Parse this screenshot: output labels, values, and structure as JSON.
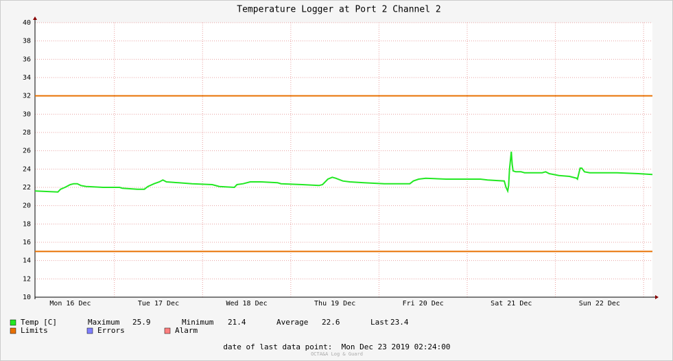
{
  "chart_data": {
    "type": "line",
    "title": "Temperature Logger at Port 2 Channel 2",
    "xlim": [
      16.1,
      23.1
    ],
    "xticks": [
      {
        "value": 16.5,
        "label": "Mon 16 Dec"
      },
      {
        "value": 17.5,
        "label": "Tue 17 Dec"
      },
      {
        "value": 18.5,
        "label": "Wed 18 Dec"
      },
      {
        "value": 19.5,
        "label": "Thu 19 Dec"
      },
      {
        "value": 20.5,
        "label": "Fri 20 Dec"
      },
      {
        "value": 21.5,
        "label": "Sat 21 Dec"
      },
      {
        "value": 22.5,
        "label": "Sun 22 Dec"
      }
    ],
    "xgrid": [
      17,
      18,
      19,
      20,
      21,
      22,
      23
    ],
    "ylim": [
      10,
      40
    ],
    "yticks": [
      10,
      12,
      14,
      16,
      18,
      20,
      22,
      24,
      26,
      28,
      30,
      32,
      34,
      36,
      38,
      40
    ],
    "grid": true,
    "series": [
      {
        "name": "Temp [C]",
        "color": "#22e822",
        "x": [
          16.1,
          16.36,
          16.39,
          16.44,
          16.5,
          16.54,
          16.58,
          16.62,
          16.68,
          16.87,
          17.06,
          17.09,
          17.26,
          17.34,
          17.38,
          17.45,
          17.51,
          17.55,
          17.59,
          17.73,
          17.88,
          18.11,
          18.19,
          18.36,
          18.39,
          18.46,
          18.54,
          18.66,
          18.85,
          18.89,
          19.13,
          19.32,
          19.36,
          19.42,
          19.47,
          19.51,
          19.59,
          19.67,
          19.83,
          20.06,
          20.35,
          20.39,
          20.45,
          20.53,
          20.76,
          21.15,
          21.23,
          21.42,
          21.44,
          21.46,
          21.47,
          21.48,
          21.5,
          21.51,
          21.52,
          21.55,
          21.61,
          21.65,
          21.85,
          21.89,
          21.93,
          22.04,
          22.16,
          22.24,
          22.25,
          22.28,
          22.3,
          22.33,
          22.39,
          22.7,
          22.94,
          23.1
        ],
        "values": [
          21.6,
          21.5,
          21.8,
          22.0,
          22.3,
          22.4,
          22.4,
          22.2,
          22.1,
          22.0,
          22.0,
          21.9,
          21.8,
          21.8,
          22.1,
          22.4,
          22.6,
          22.8,
          22.6,
          22.5,
          22.4,
          22.3,
          22.1,
          22.0,
          22.3,
          22.4,
          22.6,
          22.6,
          22.5,
          22.4,
          22.3,
          22.2,
          22.3,
          22.9,
          23.1,
          23.0,
          22.7,
          22.6,
          22.5,
          22.4,
          22.4,
          22.7,
          22.9,
          23.0,
          22.9,
          22.9,
          22.8,
          22.7,
          22.0,
          21.6,
          22.2,
          24.0,
          25.9,
          24.5,
          23.8,
          23.7,
          23.7,
          23.6,
          23.6,
          23.7,
          23.5,
          23.3,
          23.2,
          23.0,
          22.9,
          24.1,
          24.1,
          23.7,
          23.6,
          23.6,
          23.5,
          23.4
        ]
      }
    ],
    "stats": [
      {
        "label": "Maximum",
        "value": 25.9
      },
      {
        "label": "Minimum",
        "value": 21.4
      },
      {
        "label": "Average",
        "value": 22.6
      },
      {
        "label": "Last",
        "value": 23.4
      }
    ],
    "limits": {
      "name": "Limits",
      "color": "#e87000",
      "values": [
        32,
        15
      ]
    },
    "legend_extra": [
      {
        "name": "Errors",
        "color": "#7f7fff"
      },
      {
        "name": "Alarm",
        "color": "#ff7f7f"
      }
    ],
    "footer": "date of last data point:  Mon Dec 23 2019 02:24:00",
    "watermark": "OCTA&A Log & Guard"
  }
}
